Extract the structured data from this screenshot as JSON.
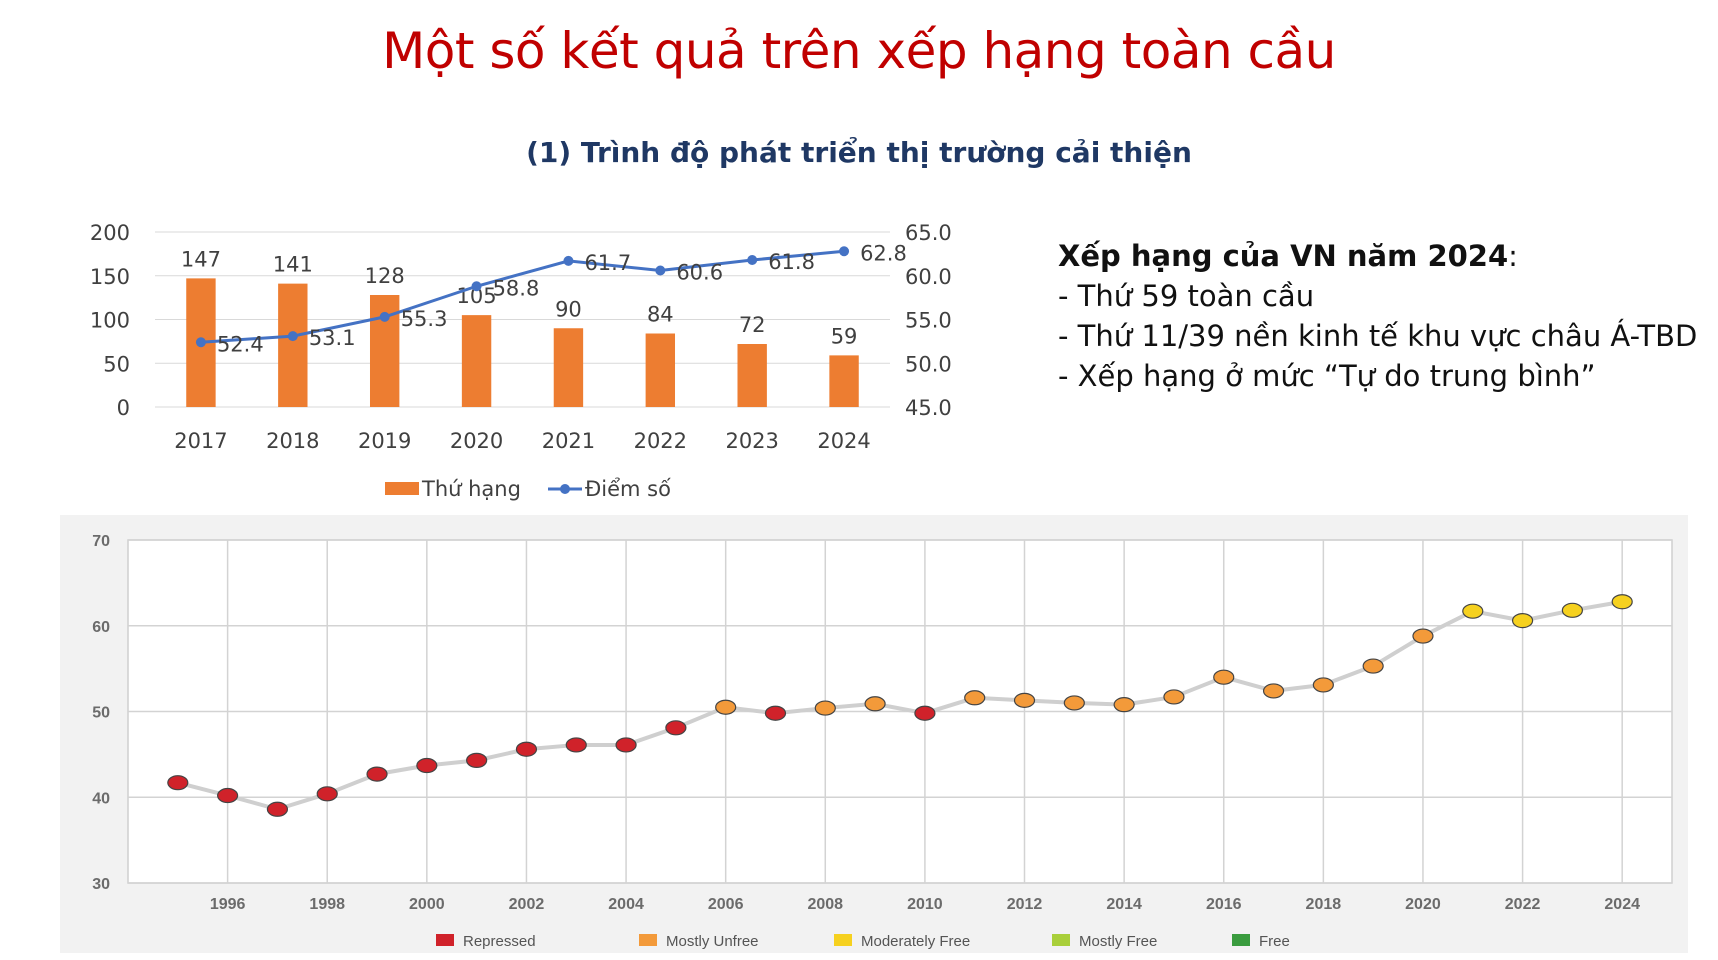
{
  "title": "Một số kết quả trên xếp hạng toàn cầu",
  "subtitle": "(1) Trình độ phát triển thị trường cải thiện",
  "info": {
    "heading": "Xếp hạng của VN năm 2024",
    "heading_suffix": ":",
    "lines": [
      "- Thứ 59 toàn cầu",
      "- Thứ 11/39 nền kinh tế khu vực châu Á-TBD",
      "- Xếp hạng ở mức “Tự do trung bình”"
    ]
  },
  "chart_data": [
    {
      "type": "bar",
      "categories": [
        "2017",
        "2018",
        "2019",
        "2020",
        "2021",
        "2022",
        "2023",
        "2024"
      ],
      "series": [
        {
          "name": "Thứ hạng",
          "type": "bar",
          "axis": "left",
          "values": [
            147,
            141,
            128,
            105,
            90,
            84,
            72,
            59
          ],
          "value_labels": [
            "147",
            "141",
            "128",
            "105",
            "90",
            "84",
            "72",
            "59"
          ]
        },
        {
          "name": "Điểm số",
          "type": "line",
          "axis": "right",
          "values": [
            52.4,
            53.1,
            55.3,
            58.8,
            61.7,
            60.6,
            61.8,
            62.8
          ],
          "value_labels": [
            "52.4",
            "53.1",
            "55.3",
            "58.8",
            "61.7",
            "60.6",
            "61.8",
            "62.8"
          ]
        }
      ],
      "y_left": {
        "min": 0,
        "max": 200,
        "ticks": [
          "0",
          "50",
          "100",
          "150",
          "200"
        ]
      },
      "y_right": {
        "min": 45,
        "max": 65,
        "ticks": [
          "45.0",
          "50.0",
          "55.0",
          "60.0",
          "65.0"
        ]
      },
      "grid": true,
      "legend": "bottom",
      "colors": {
        "bar": "#ed7d31",
        "line": "#4472c4"
      }
    },
    {
      "type": "line",
      "x": [
        1995,
        1996,
        1997,
        1998,
        1999,
        2000,
        2001,
        2002,
        2003,
        2004,
        2005,
        2006,
        2007,
        2008,
        2009,
        2010,
        2011,
        2012,
        2013,
        2014,
        2015,
        2016,
        2017,
        2018,
        2019,
        2020,
        2021,
        2022,
        2023,
        2024
      ],
      "y": [
        41.7,
        40.2,
        38.6,
        40.4,
        42.7,
        43.7,
        44.3,
        45.6,
        46.1,
        46.1,
        48.1,
        50.5,
        49.8,
        50.4,
        50.9,
        49.8,
        51.6,
        51.3,
        51.0,
        50.8,
        51.7,
        54.0,
        52.4,
        53.1,
        55.3,
        58.8,
        61.7,
        60.6,
        61.8,
        62.8
      ],
      "point_category": [
        "Repressed",
        "Repressed",
        "Repressed",
        "Repressed",
        "Repressed",
        "Repressed",
        "Repressed",
        "Repressed",
        "Repressed",
        "Repressed",
        "Repressed",
        "Mostly Unfree",
        "Repressed",
        "Mostly Unfree",
        "Mostly Unfree",
        "Repressed",
        "Mostly Unfree",
        "Mostly Unfree",
        "Mostly Unfree",
        "Mostly Unfree",
        "Mostly Unfree",
        "Mostly Unfree",
        "Mostly Unfree",
        "Mostly Unfree",
        "Mostly Unfree",
        "Mostly Unfree",
        "Moderately Free",
        "Moderately Free",
        "Moderately Free",
        "Moderately Free"
      ],
      "x_ticks": [
        "1996",
        "1998",
        "2000",
        "2002",
        "2004",
        "2006",
        "2008",
        "2010",
        "2012",
        "2014",
        "2016",
        "2018",
        "2020",
        "2022",
        "2024"
      ],
      "y_ticks": [
        "30",
        "40",
        "50",
        "60",
        "70"
      ],
      "ylim": [
        30,
        70
      ],
      "xlim": [
        1994,
        2025
      ],
      "grid": true,
      "legend": "bottom",
      "legend_items": [
        {
          "name": "Repressed",
          "color": "#d0222a"
        },
        {
          "name": "Mostly Unfree",
          "color": "#f39a3a"
        },
        {
          "name": "Moderately Free",
          "color": "#f6d11f"
        },
        {
          "name": "Mostly Free",
          "color": "#a9cf3a"
        },
        {
          "name": "Free",
          "color": "#3a9c3f"
        }
      ],
      "line_color": "#cfcfcf"
    }
  ]
}
